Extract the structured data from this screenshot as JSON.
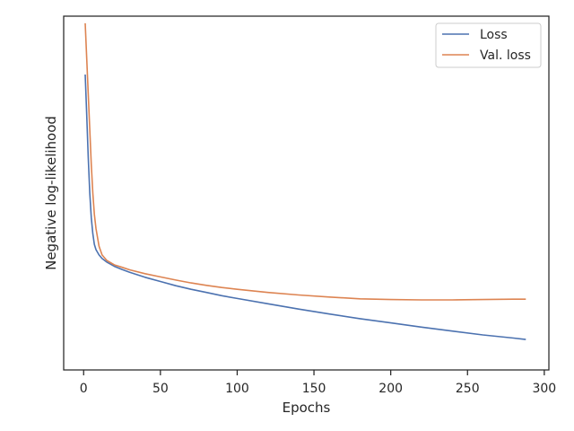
{
  "chart_data": {
    "type": "line",
    "title": "",
    "xlabel": "Epochs",
    "ylabel": "Negative log-likelihood",
    "xlim": [
      -13,
      303
    ],
    "ylim": [
      0,
      1
    ],
    "y_ticks_visible": false,
    "xticks": [
      0,
      50,
      100,
      150,
      200,
      250,
      300
    ],
    "xtick_labels": [
      "0",
      "50",
      "100",
      "150",
      "200",
      "250",
      "300"
    ],
    "grid": false,
    "legend_position": "top-right",
    "series": [
      {
        "name": "Loss",
        "color": "#4c72b0",
        "x": [
          1,
          2,
          3,
          4,
          5,
          6,
          7,
          8,
          10,
          12,
          15,
          20,
          25,
          30,
          40,
          50,
          60,
          70,
          80,
          90,
          100,
          120,
          140,
          160,
          180,
          200,
          220,
          240,
          260,
          280,
          288
        ],
        "y": [
          0.835,
          0.72,
          0.6,
          0.5,
          0.43,
          0.385,
          0.355,
          0.34,
          0.325,
          0.315,
          0.305,
          0.293,
          0.284,
          0.276,
          0.262,
          0.25,
          0.238,
          0.228,
          0.219,
          0.21,
          0.202,
          0.187,
          0.172,
          0.158,
          0.145,
          0.133,
          0.121,
          0.11,
          0.099,
          0.09,
          0.086
        ]
      },
      {
        "name": "Val. loss",
        "color": "#dd8452",
        "x": [
          1,
          2,
          3,
          4,
          5,
          6,
          7,
          8,
          10,
          12,
          15,
          20,
          25,
          30,
          40,
          50,
          60,
          70,
          80,
          90,
          100,
          120,
          140,
          160,
          180,
          200,
          220,
          240,
          260,
          280,
          288
        ],
        "y": [
          0.98,
          0.88,
          0.78,
          0.68,
          0.58,
          0.5,
          0.44,
          0.4,
          0.35,
          0.325,
          0.31,
          0.297,
          0.29,
          0.283,
          0.272,
          0.263,
          0.254,
          0.246,
          0.239,
          0.233,
          0.228,
          0.219,
          0.212,
          0.206,
          0.201,
          0.199,
          0.198,
          0.198,
          0.199,
          0.2,
          0.2
        ]
      }
    ]
  }
}
